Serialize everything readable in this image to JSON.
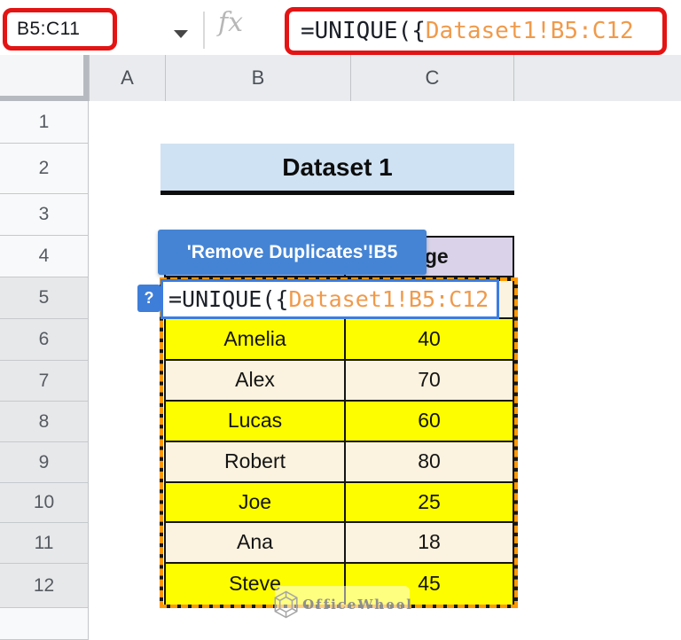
{
  "name_box": {
    "value": "B5:C11"
  },
  "formula_bar": {
    "fx_label": "fx"
  },
  "formula": {
    "prefix": "=UNIQUE({",
    "reference": "Dataset1!B5:C12"
  },
  "grid": {
    "column_headers": [
      "A",
      "B",
      "C"
    ],
    "row_numbers": [
      "1",
      "2",
      "3",
      "4",
      "5",
      "6",
      "7",
      "8",
      "9",
      "10",
      "11",
      "12"
    ]
  },
  "sheet": {
    "title": "Dataset 1",
    "tooltip": "'Remove Duplicates'!B5",
    "help_icon": "?",
    "table": {
      "age_header": "Age",
      "rows": [
        {
          "name": "Amelia",
          "age": "40",
          "bg": "yellow"
        },
        {
          "name": "Alex",
          "age": "70",
          "bg": "cream"
        },
        {
          "name": "Lucas",
          "age": "60",
          "bg": "yellow"
        },
        {
          "name": "Robert",
          "age": "80",
          "bg": "cream"
        },
        {
          "name": "Joe",
          "age": "25",
          "bg": "yellow"
        },
        {
          "name": "Ana",
          "age": "18",
          "bg": "cream"
        },
        {
          "name": "Steve",
          "age": "45",
          "bg": "yellow"
        }
      ]
    }
  },
  "watermark": {
    "text": "OfficeWheel"
  },
  "colors": {
    "annotation_red": "#e41414",
    "tooltip_blue": "#4584d4",
    "editor_blue": "#3b7de0",
    "range_orange": "#fe9900",
    "formula_ref_orange": "#f09a4b",
    "yellow": "#fdfd00",
    "cream": "#fbf2df",
    "lavender": "#d9d2e9",
    "title_blue": "#cfe2f3"
  }
}
